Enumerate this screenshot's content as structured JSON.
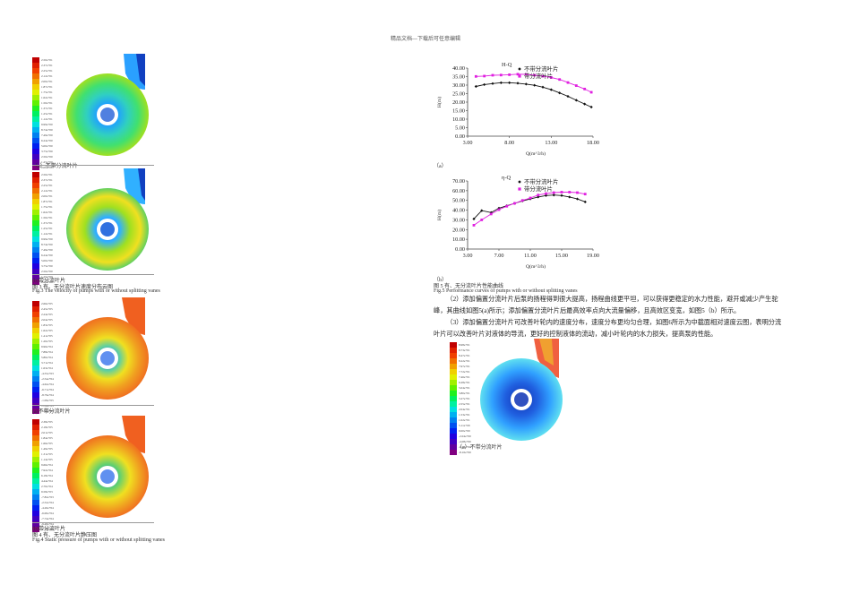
{
  "header": "精品文档---下载后可任意编辑",
  "fig3": {
    "panel_a_caption": "（a）不带分流叶片",
    "panel_b_caption": "(b)带分流叶片",
    "caption_cn": "图 3 有、无分流叶片速度分布云图",
    "caption_en": "Fig.3 The velocity of pumps with or without splitting vanes",
    "legend_a": [
      "2.50e+01",
      "2.37e+01",
      "2.25e+01",
      "2.12e+01",
      "2.00e+01",
      "1.87e+01",
      "1.75e+01",
      "1.62e+01",
      "1.50e+01",
      "1.37e+01",
      "1.25e+01",
      "1.12e+01",
      "9.99e+00",
      "8.74e+00",
      "7.49e+00",
      "6.24e+00",
      "5.00e+00",
      "3.75e+00",
      "2.50e+00",
      "1.25e+00",
      "0.00e+00"
    ],
    "legend_b": [
      "2.50e+01",
      "2.37e+01",
      "2.25e+01",
      "2.12e+01",
      "2.00e+01",
      "1.87e+01",
      "1.75e+01",
      "1.62e+01",
      "1.50e+01",
      "1.37e+01",
      "1.25e+01",
      "1.12e+01",
      "9.99e+00",
      "8.74e+00",
      "7.49e+00",
      "6.24e+00",
      "5.00e+00",
      "3.75e+00",
      "2.50e+00",
      "1.25e+00",
      "0.00e+00"
    ]
  },
  "fig4": {
    "panel_a_caption": "(a)不带分流叶片",
    "panel_b_caption": "(b)带分流叶片",
    "caption_cn": "图 4 有、无分流叶片静压图",
    "caption_en": "Fig.4 Static pressure of pumps with or without splitting vanes",
    "legend_a": [
      "2.66e+05",
      "2.45e+05",
      "2.24e+05",
      "2.04e+05",
      "1.83e+05",
      "1.62e+05",
      "1.41e+05",
      "1.20e+05",
      "9.96e+04",
      "7.88e+04",
      "5.80e+04",
      "3.71e+04",
      "1.63e+04",
      "-4.55e+03",
      "-2.54e+04",
      "-4.62e+04",
      "-6.71e+04",
      "-8.79e+04",
      "-1.09e+05",
      "-1.30e+05",
      "-1.50e+05"
    ],
    "legend_b": [
      "2.38e+05",
      "2.18e+05",
      "2.01e+05",
      "1.84e+05",
      "1.66e+05",
      "1.49e+05",
      "1.31e+05",
      "1.14e+05",
      "9.66e+04",
      "7.92e+04",
      "6.18e+04",
      "4.44e+04",
      "2.70e+04",
      "9.58e+03",
      "-7.82e+03",
      "-2.52e+04",
      "-4.26e+04",
      "-6.00e+04",
      "-7.74e+04",
      "-9.48e+04",
      "-1.12e+05"
    ]
  },
  "fig5": {
    "panel_a_caption": "（a）",
    "panel_b_caption": "（b）",
    "caption_cn": "图 5 有、无分流叶片性能曲线",
    "caption_en": "Fig.5 Performance curves of pumps with or without splitting vanes"
  },
  "fig6": {
    "panel_a_caption": "（a）不带分流叶片",
    "legend_a": [
      "8.98e+01",
      "8.73e+01",
      "8.47e+01",
      "8.22e+01",
      "7.97e+01",
      "7.72e+01",
      "7.46e+01",
      "6.28e+01",
      "5.04e+01",
      "3.80e+01",
      "3.27e+01",
      "2.55e+01",
      "2.04e+01",
      "1.53e+01",
      "1.02e+01",
      "5.11e+00",
      "0.00e+00",
      "-2.04e+00",
      "-4.08e+00",
      "-6.12e+00",
      "-8.16e+00"
    ]
  },
  "body_text": {
    "para1": "（2）添加偏置分流叶片后泵的扬程得到很大提高，扬程曲线更平坦，可以获得更稳定的水力性能，避开或减少产生驼峰，其曲线如图5(a)所示；添加偏置分流叶片后最高效率点向大流量偏移，且高效区变宽，如图5（b）所示。",
    "para2": "（3）添加偏置分流叶片可改善叶轮内的速度分布，速度分布更均匀合理，如图6所示为中截面相对速度云图，表明分流叶片可以改善叶片对液体的导流，更好的控制液体的流动，减小叶轮内的水力损失，提高泵的性能。"
  },
  "chart_data": [
    {
      "type": "line",
      "title": "H-Q",
      "xlabel": "Q(m^3/h)",
      "ylabel": "H(m)",
      "xlim": [
        3.0,
        18.0
      ],
      "ylim": [
        0.0,
        40.0
      ],
      "xticks": [
        "3.00",
        "8.00",
        "13.00",
        "18.00"
      ],
      "yticks": [
        "0.00",
        "5.00",
        "10.00",
        "15.00",
        "20.00",
        "25.00",
        "30.00",
        "35.00",
        "40.00"
      ],
      "legend_position": "top-center",
      "series": [
        {
          "name": "不带分流叶片",
          "color": "#111111",
          "marker": "diamond",
          "x": [
            4.0,
            5.0,
            6.0,
            7.0,
            8.0,
            9.0,
            10.0,
            11.0,
            12.0,
            13.0,
            14.0,
            15.0,
            16.0,
            17.0,
            17.8
          ],
          "y": [
            29.2,
            30.3,
            30.9,
            31.4,
            31.4,
            31.1,
            30.6,
            29.9,
            28.8,
            27.3,
            25.4,
            23.4,
            21.1,
            18.9,
            17.1
          ]
        },
        {
          "name": "带分流叶片",
          "color": "#e020e0",
          "marker": "square",
          "x": [
            4.0,
            5.0,
            6.0,
            7.0,
            8.0,
            9.0,
            10.0,
            11.0,
            12.0,
            13.0,
            14.0,
            15.0,
            16.0,
            17.0,
            17.8
          ],
          "y": [
            35.1,
            35.3,
            35.8,
            35.9,
            36.1,
            36.4,
            36.3,
            35.8,
            35.2,
            34.5,
            33.3,
            31.5,
            29.7,
            27.7,
            25.8
          ]
        }
      ]
    },
    {
      "type": "line",
      "title": "η-Q",
      "xlabel": "Q(m^3/h)",
      "ylabel": "H(m)",
      "xlim": [
        3.0,
        19.0
      ],
      "ylim": [
        0.0,
        70.0
      ],
      "xticks": [
        "3.00",
        "7.00",
        "11.00",
        "15.00",
        "19.00"
      ],
      "yticks": [
        "0.00",
        "10.00",
        "20.00",
        "30.00",
        "40.00",
        "50.00",
        "60.00",
        "70.00"
      ],
      "legend_position": "top-center",
      "series": [
        {
          "name": "不带分流叶片",
          "color": "#111111",
          "marker": "diamond",
          "x": [
            3.8,
            4.8,
            6.0,
            7.0,
            8.0,
            9.0,
            10.0,
            11.0,
            12.0,
            13.0,
            14.0,
            15.0,
            16.0,
            17.0,
            18.0
          ],
          "y": [
            31.0,
            39.5,
            37.5,
            42.0,
            44.5,
            47.0,
            49.5,
            51.5,
            53.5,
            55.0,
            55.5,
            55.0,
            53.5,
            51.5,
            48.5
          ]
        },
        {
          "name": "带分流叶片",
          "color": "#e020e0",
          "marker": "square",
          "x": [
            3.8,
            4.8,
            6.0,
            7.0,
            8.0,
            9.0,
            10.0,
            11.0,
            12.0,
            13.0,
            14.0,
            15.0,
            16.0,
            17.0,
            18.0
          ],
          "y": [
            24.5,
            30.0,
            36.0,
            40.5,
            44.0,
            47.0,
            50.0,
            52.5,
            55.5,
            57.0,
            58.0,
            58.5,
            58.5,
            58.0,
            56.5
          ]
        }
      ]
    }
  ]
}
